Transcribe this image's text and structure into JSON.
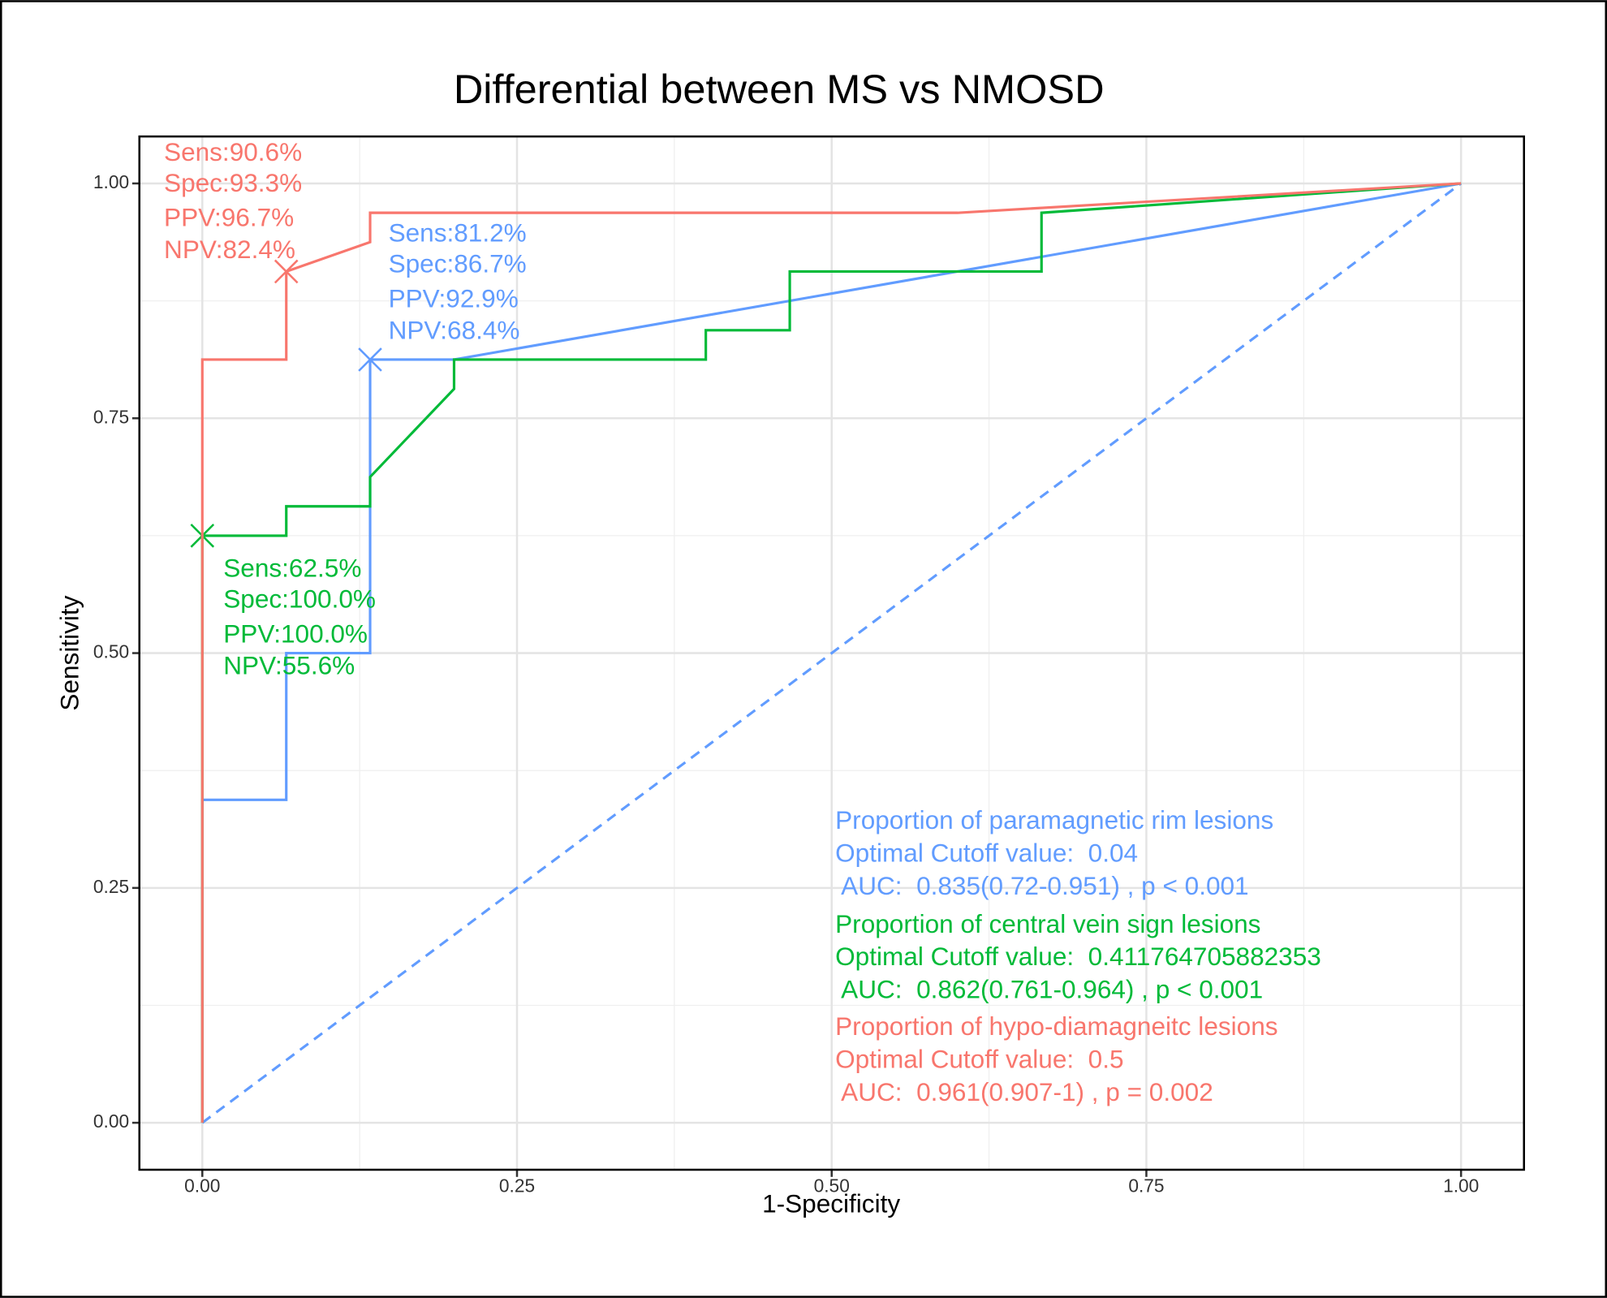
{
  "chart_data": {
    "type": "line",
    "title": "Differential between MS vs NMOSD",
    "xlabel": "1-Specificity",
    "ylabel": "Sensitivity",
    "xlim": [
      -0.05,
      1.05
    ],
    "ylim": [
      -0.05,
      1.05
    ],
    "xticks": [
      {
        "value": 0,
        "label": "0.00"
      },
      {
        "value": 0.25,
        "label": "0.25"
      },
      {
        "value": 0.5,
        "label": "0.50"
      },
      {
        "value": 0.75,
        "label": "0.75"
      },
      {
        "value": 1,
        "label": "1.00"
      }
    ],
    "yticks": [
      {
        "value": 0,
        "label": "0.00"
      },
      {
        "value": 0.25,
        "label": "0.25"
      },
      {
        "value": 0.5,
        "label": "0.50"
      },
      {
        "value": 0.75,
        "label": "0.75"
      },
      {
        "value": 1,
        "label": "1.00"
      }
    ],
    "minor_xticks": [
      0.125,
      0.375,
      0.625,
      0.875
    ],
    "minor_yticks": [
      0.125,
      0.375,
      0.625,
      0.875
    ],
    "grid": true,
    "series": [
      {
        "name": "Proportion of paramagnetic rim lesions",
        "color": "#619CFF",
        "cutoff_text": "Optimal Cutoff value:  0.04",
        "auc_text": " AUC:  0.835(0.72-0.951) , p < 0.001",
        "x": [
          0,
          0,
          0.0667,
          0.0667,
          0.1333,
          0.1333,
          0.2,
          1
        ],
        "y": [
          0,
          0.34375,
          0.34375,
          0.5,
          0.5,
          0.8125,
          0.8125,
          1
        ],
        "optimal": {
          "x": 0.1333,
          "y": 0.8125
        },
        "labels": [
          "Sens:81.2%",
          "Spec:86.7%",
          "PPV:92.9%",
          "NPV:68.4%"
        ]
      },
      {
        "name": "Proportion of central vein sign lesions",
        "color": "#00BA38",
        "cutoff_text": "Optimal Cutoff value:  0.411764705882353",
        "auc_text": " AUC:  0.862(0.761-0.964) , p < 0.001",
        "x": [
          0,
          0,
          0.0667,
          0.0667,
          0.1333,
          0.1333,
          0.2,
          0.2,
          0.4,
          0.4,
          0.4667,
          0.4667,
          0.6667,
          0.6667,
          1
        ],
        "y": [
          0,
          0.625,
          0.625,
          0.65625,
          0.65625,
          0.6875,
          0.78125,
          0.8125,
          0.8125,
          0.84375,
          0.84375,
          0.90625,
          0.90625,
          0.96875,
          1
        ],
        "optimal": {
          "x": 0,
          "y": 0.625
        },
        "labels": [
          "Sens:62.5%",
          "Spec:100.0%",
          "PPV:100.0%",
          "NPV:55.6%"
        ]
      },
      {
        "name": "Proportion of hypo-diamagneitc lesions",
        "color": "#F8766D",
        "cutoff_text": "Optimal Cutoff value:  0.5",
        "auc_text": " AUC:  0.961(0.907-1) , p = 0.002",
        "x": [
          0,
          0,
          0.0667,
          0.0667,
          0.1333,
          0.1333,
          0.6,
          1
        ],
        "y": [
          0,
          0.8125,
          0.8125,
          0.90625,
          0.9375,
          0.96875,
          0.96875,
          1
        ],
        "optimal": {
          "x": 0.0667,
          "y": 0.90625
        },
        "labels": [
          "Sens:90.6%",
          "Spec:93.3%",
          "PPV:96.7%",
          "NPV:82.4%"
        ]
      }
    ],
    "reference": {
      "x": [
        0,
        1
      ],
      "y": [
        0,
        1
      ],
      "color": "#619CFF",
      "dashed": true
    }
  }
}
